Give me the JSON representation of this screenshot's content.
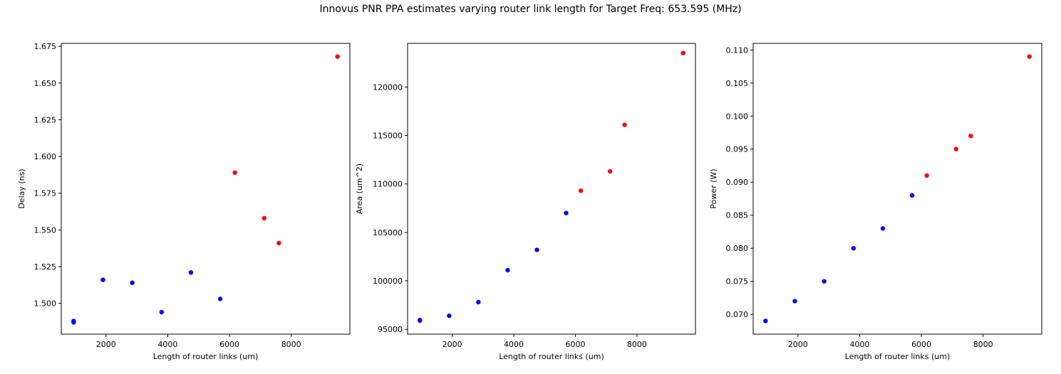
{
  "figure": {
    "title": "Innovus PNR PPA estimates varying router link length for Target Freq: 653.595 (MHz)"
  },
  "chart_data": [
    {
      "type": "scatter",
      "xlabel": "Length of router links (um)",
      "ylabel": "Delay (ns)",
      "xlim": [
        550,
        9900
      ],
      "ylim": [
        1.479,
        1.677
      ],
      "xticks": [
        2000,
        4000,
        6000,
        8000
      ],
      "xtick_labels": [
        "2000",
        "4000",
        "6000",
        "8000"
      ],
      "yticks": [
        1.5,
        1.525,
        1.55,
        1.575,
        1.6,
        1.625,
        1.65,
        1.675
      ],
      "ytick_labels": [
        "1.500",
        "1.525",
        "1.550",
        "1.575",
        "1.600",
        "1.625",
        "1.650",
        "1.675"
      ],
      "grid": false,
      "series": [
        {
          "color": "#0000ff",
          "points": [
            [
              950,
              1.488
            ],
            [
              950,
              1.487
            ],
            [
              1900,
              1.516
            ],
            [
              2850,
              1.514
            ],
            [
              3800,
              1.494
            ],
            [
              4750,
              1.521
            ],
            [
              5700,
              1.503
            ]
          ]
        },
        {
          "color": "#ff0000",
          "points": [
            [
              6175,
              1.589
            ],
            [
              7125,
              1.558
            ],
            [
              7600,
              1.541
            ],
            [
              9500,
              1.668
            ]
          ]
        }
      ]
    },
    {
      "type": "scatter",
      "xlabel": "Length of router links (um)",
      "ylabel": "Area (um^2)",
      "xlim": [
        550,
        9900
      ],
      "ylim": [
        94500,
        124500
      ],
      "xticks": [
        2000,
        4000,
        6000,
        8000
      ],
      "xtick_labels": [
        "2000",
        "4000",
        "6000",
        "8000"
      ],
      "yticks": [
        95000,
        100000,
        105000,
        110000,
        115000,
        120000
      ],
      "ytick_labels": [
        "95000",
        "100000",
        "105000",
        "110000",
        "115000",
        "120000"
      ],
      "grid": false,
      "series": [
        {
          "color": "#0000ff",
          "points": [
            [
              950,
              95950
            ],
            [
              950,
              95900
            ],
            [
              1900,
              96400
            ],
            [
              2850,
              97800
            ],
            [
              3800,
              101100
            ],
            [
              4750,
              103200
            ],
            [
              5700,
              107000
            ]
          ]
        },
        {
          "color": "#ff0000",
          "points": [
            [
              6175,
              109300
            ],
            [
              7125,
              111300
            ],
            [
              7600,
              116100
            ],
            [
              9500,
              123500
            ]
          ]
        }
      ]
    },
    {
      "type": "scatter",
      "xlabel": "Length of router links (um)",
      "ylabel": "Power (W)",
      "xlim": [
        550,
        9900
      ],
      "ylim": [
        0.067,
        0.111
      ],
      "xticks": [
        2000,
        4000,
        6000,
        8000
      ],
      "xtick_labels": [
        "2000",
        "4000",
        "6000",
        "8000"
      ],
      "yticks": [
        0.07,
        0.075,
        0.08,
        0.085,
        0.09,
        0.095,
        0.1,
        0.105,
        0.11
      ],
      "ytick_labels": [
        "0.070",
        "0.075",
        "0.080",
        "0.085",
        "0.090",
        "0.095",
        "0.100",
        "0.105",
        "0.110"
      ],
      "grid": false,
      "series": [
        {
          "color": "#0000ff",
          "points": [
            [
              950,
              0.069
            ],
            [
              950,
              0.069
            ],
            [
              1900,
              0.072
            ],
            [
              2850,
              0.075
            ],
            [
              3800,
              0.08
            ],
            [
              4750,
              0.083
            ],
            [
              5700,
              0.088
            ]
          ]
        },
        {
          "color": "#ff0000",
          "points": [
            [
              6175,
              0.091
            ],
            [
              7125,
              0.095
            ],
            [
              7600,
              0.097
            ],
            [
              9500,
              0.109
            ]
          ]
        }
      ]
    }
  ]
}
